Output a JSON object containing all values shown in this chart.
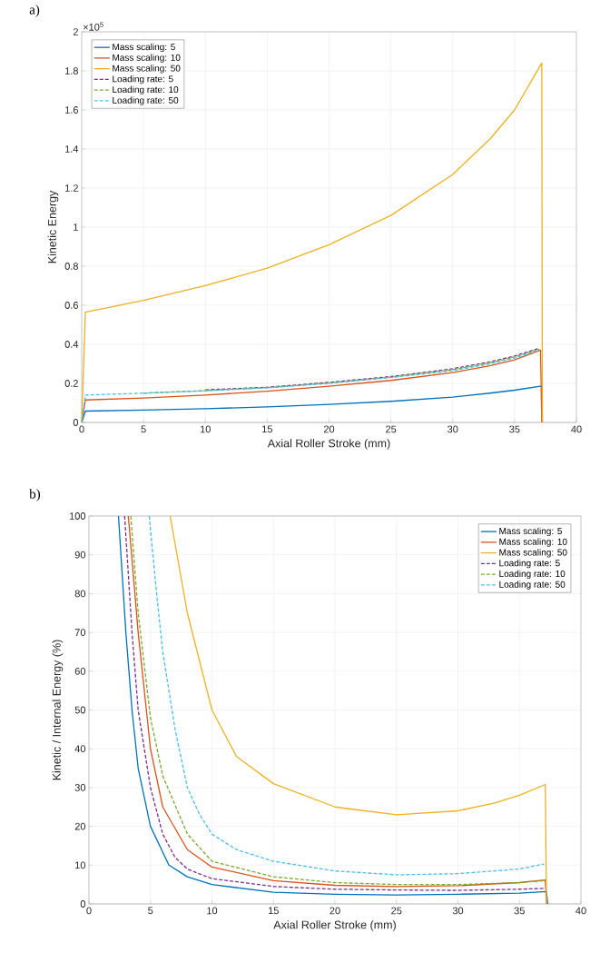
{
  "chart_data": [
    {
      "type": "line",
      "title": "a)",
      "xlabel": "Axial Roller Stroke (mm)",
      "ylabel": "Kinetic Energy",
      "annotations": [
        "×10$^{5}$"
      ],
      "xlim": [
        0,
        40
      ],
      "ylim": [
        0,
        2
      ],
      "xticks": [
        0,
        5,
        10,
        15,
        20,
        25,
        30,
        35,
        40
      ],
      "yticks": [
        0,
        0.2,
        0.4,
        0.6,
        0.8,
        1,
        1.2,
        1.4,
        1.6,
        1.8,
        2
      ],
      "grid": true,
      "legend": "top left",
      "marker": "none",
      "series": [
        {
          "name": "Mass scaling: 5",
          "color": "#0072bd",
          "line_style": "solid",
          "x": [
            0,
            0.3,
            5,
            10,
            15,
            20,
            25,
            30,
            33,
            35,
            37.2,
            37.25
          ],
          "values": [
            0,
            0.058,
            0.063,
            0.07,
            0.08,
            0.092,
            0.108,
            0.13,
            0.15,
            0.165,
            0.187,
            0
          ]
        },
        {
          "name": "Mass scaling: 10",
          "color": "#d95319",
          "line_style": "solid",
          "x": [
            0,
            0.3,
            5,
            10,
            15,
            20,
            25,
            30,
            33,
            35,
            37.1,
            37.2
          ],
          "values": [
            0,
            0.115,
            0.125,
            0.14,
            0.16,
            0.185,
            0.215,
            0.255,
            0.29,
            0.32,
            0.37,
            0
          ]
        },
        {
          "name": "Mass scaling: 50",
          "color": "#edb120",
          "line_style": "solid",
          "x": [
            0,
            0.3,
            5,
            10,
            15,
            20,
            25,
            30,
            33,
            35,
            37.2,
            37.25
          ],
          "values": [
            0,
            0.565,
            0.625,
            0.7,
            0.79,
            0.91,
            1.06,
            1.27,
            1.45,
            1.6,
            1.84,
            0
          ]
        },
        {
          "name": "Loading rate: 5",
          "color": "#7e2f8e",
          "line_style": "dashed",
          "x": [
            10,
            15,
            20,
            25,
            30,
            33,
            35,
            37
          ],
          "values": [
            0.167,
            0.18,
            0.205,
            0.235,
            0.275,
            0.31,
            0.34,
            0.38
          ]
        },
        {
          "name": "Loading rate: 10",
          "color": "#77ac30",
          "line_style": "dashed",
          "x": [
            5,
            10,
            15,
            20,
            25,
            30,
            33,
            35,
            37
          ],
          "values": [
            0.15,
            0.163,
            0.178,
            0.202,
            0.232,
            0.27,
            0.305,
            0.335,
            0.375
          ]
        },
        {
          "name": "Loading rate: 50",
          "color": "#4dbeee",
          "line_style": "dashed",
          "x": [
            0,
            0.3,
            5,
            10,
            15,
            20,
            25,
            30,
            33,
            35,
            37
          ],
          "values": [
            0,
            0.14,
            0.15,
            0.162,
            0.177,
            0.2,
            0.23,
            0.265,
            0.3,
            0.33,
            0.37
          ]
        }
      ]
    },
    {
      "type": "line",
      "title": "b)",
      "xlabel": "Axial Roller Stroke (mm)",
      "ylabel": "Kinetic / Internal Energy (%)",
      "xlim": [
        0,
        40
      ],
      "ylim": [
        0,
        100
      ],
      "xticks": [
        0,
        5,
        10,
        15,
        20,
        25,
        30,
        35,
        40
      ],
      "yticks": [
        0,
        10,
        20,
        30,
        40,
        50,
        60,
        70,
        80,
        90,
        100
      ],
      "grid": true,
      "legend": "top right",
      "marker": "none",
      "series": [
        {
          "name": "Mass scaling: 5",
          "color": "#0072bd",
          "line_style": "solid",
          "x": [
            2.4,
            3,
            3.5,
            4,
            5,
            6.5,
            8,
            10,
            15,
            20,
            25,
            30,
            35,
            37.2,
            37.3
          ],
          "values": [
            100,
            70,
            50,
            35,
            20,
            10,
            7,
            5,
            3,
            2.5,
            2.3,
            2.5,
            2.8,
            3.2,
            0
          ]
        },
        {
          "name": "Mass scaling: 10",
          "color": "#d95319",
          "line_style": "solid",
          "x": [
            3.2,
            4,
            5,
            6,
            8,
            10,
            15,
            20,
            25,
            30,
            35,
            37.1,
            37.2
          ],
          "values": [
            100,
            70,
            40,
            25,
            14,
            9.5,
            6,
            4.8,
            4.5,
            4.7,
            5.5,
            6.2,
            0
          ]
        },
        {
          "name": "Mass scaling: 50",
          "color": "#edb120",
          "line_style": "solid",
          "x": [
            6.6,
            8,
            10,
            12,
            15,
            20,
            25,
            30,
            33,
            35,
            37.1,
            37.2
          ],
          "values": [
            100,
            75,
            50,
            38,
            31,
            25,
            23,
            24,
            26,
            28,
            30.8,
            0
          ]
        },
        {
          "name": "Loading rate: 5",
          "color": "#7e2f8e",
          "line_style": "dashed",
          "x": [
            2.9,
            3.5,
            4,
            5,
            6,
            7,
            8,
            10,
            15,
            20,
            25,
            30,
            35,
            37
          ],
          "values": [
            100,
            70,
            50,
            30,
            18,
            12,
            9,
            6.5,
            4.5,
            3.8,
            3.6,
            3.5,
            3.8,
            4
          ]
        },
        {
          "name": "Loading rate: 10",
          "color": "#77ac30",
          "line_style": "dashed",
          "x": [
            3.4,
            4,
            5,
            6,
            8,
            10,
            15,
            20,
            25,
            30,
            35,
            37
          ],
          "values": [
            100,
            75,
            48,
            33,
            18,
            11,
            7,
            5.5,
            5,
            5,
            5.5,
            6
          ]
        },
        {
          "name": "Loading rate: 50",
          "color": "#4dbeee",
          "line_style": "dashed",
          "x": [
            4.9,
            5.5,
            6,
            7,
            8,
            9,
            10,
            12,
            15,
            20,
            25,
            30,
            35,
            37
          ],
          "values": [
            100,
            80,
            65,
            45,
            30,
            23,
            18,
            14,
            11,
            8.5,
            7.5,
            7.8,
            9,
            10.3
          ]
        }
      ]
    }
  ]
}
